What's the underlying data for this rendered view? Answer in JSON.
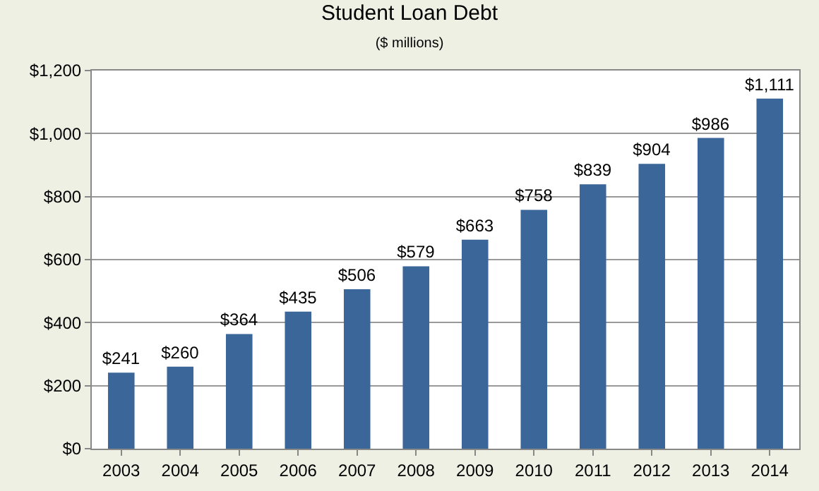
{
  "chart_data": {
    "type": "bar",
    "title": "Student Loan Debt",
    "subtitle": "($ millions)",
    "categories": [
      "2003",
      "2004",
      "2005",
      "2006",
      "2007",
      "2008",
      "2009",
      "2010",
      "2011",
      "2012",
      "2013",
      "2014"
    ],
    "values": [
      241,
      260,
      364,
      435,
      506,
      579,
      663,
      758,
      839,
      904,
      986,
      1111
    ],
    "value_labels": [
      "$241",
      "$260",
      "$364",
      "$435",
      "$506",
      "$579",
      "$663",
      "$758",
      "$839",
      "$904",
      "$986",
      "$1,111"
    ],
    "color": "#3a6699",
    "ylim": [
      0,
      1200
    ],
    "yticks": [
      {
        "value": 0,
        "label": "$0"
      },
      {
        "value": 200,
        "label": "$200"
      },
      {
        "value": 400,
        "label": "$400"
      },
      {
        "value": 600,
        "label": "$600"
      },
      {
        "value": 800,
        "label": "$800"
      },
      {
        "value": 1000,
        "label": "$1,000"
      },
      {
        "value": 1200,
        "label": "$1,200"
      }
    ],
    "grid": "y",
    "legend": false
  }
}
